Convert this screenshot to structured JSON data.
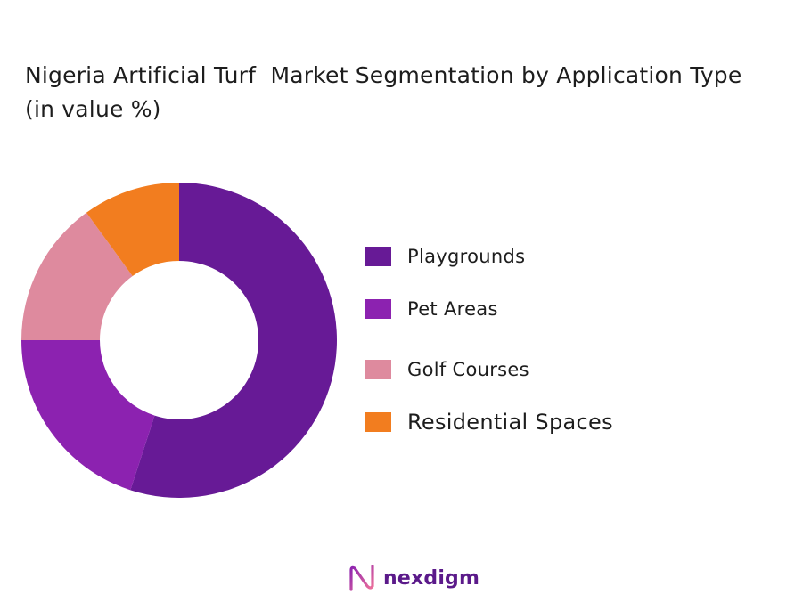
{
  "title": "Nigeria Artificial Turf  Market Segmentation by Application Type  (in value %)",
  "chart_data": {
    "type": "pie",
    "donut": true,
    "title": "Nigeria Artificial Turf  Market Segmentation by Application Type  (in value %)",
    "legend_position": "right",
    "series": [
      {
        "name": "Playgrounds",
        "value": 55,
        "color": "#671a96"
      },
      {
        "name": "Pet Areas",
        "value": 20,
        "color": "#8c22b0"
      },
      {
        "name": "Golf Courses",
        "value": 15,
        "color": "#de8a9e"
      },
      {
        "name": "Residential Spaces",
        "value": 10,
        "color": "#f27d1f"
      }
    ]
  },
  "legend": [
    {
      "label": "Playgrounds"
    },
    {
      "label": "Pet Areas"
    },
    {
      "label": "Golf Courses"
    },
    {
      "label": "Residential Spaces"
    }
  ],
  "logo": {
    "text": "nexdigm",
    "icon": "nexdigm-logo-icon"
  }
}
